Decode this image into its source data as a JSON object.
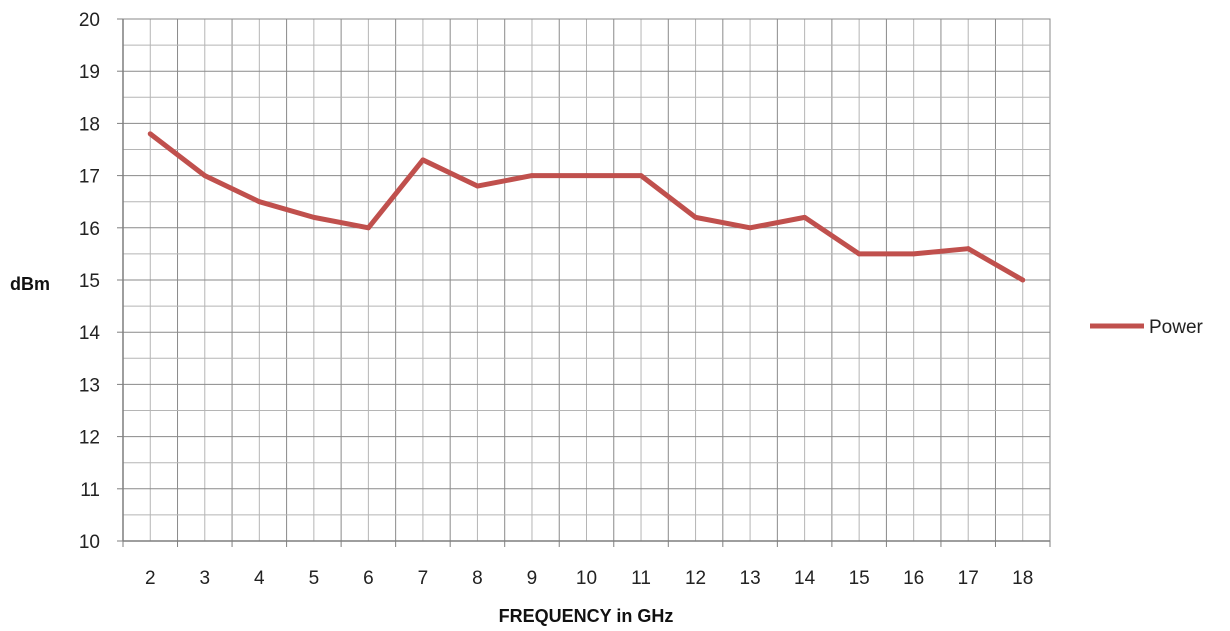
{
  "chart_data": {
    "type": "line",
    "title": "",
    "xlabel": "FREQUENCY in GHz",
    "ylabel": "dBm",
    "categories": [
      "2",
      "3",
      "4",
      "5",
      "6",
      "7",
      "8",
      "9",
      "10",
      "11",
      "12",
      "13",
      "14",
      "15",
      "16",
      "17",
      "18"
    ],
    "series": [
      {
        "name": "Power",
        "color": "#c0504d",
        "values": [
          17.8,
          17.0,
          16.5,
          16.2,
          16.0,
          17.3,
          16.8,
          17.0,
          17.0,
          17.0,
          16.2,
          16.0,
          16.2,
          15.5,
          15.5,
          15.6,
          15.0
        ]
      }
    ],
    "ylim": [
      10,
      20
    ],
    "yticks": [
      "10",
      "11",
      "12",
      "13",
      "14",
      "15",
      "16",
      "17",
      "18",
      "19",
      "20"
    ],
    "y_minor_step": 0.5,
    "grid": true,
    "legend_position": "right"
  }
}
